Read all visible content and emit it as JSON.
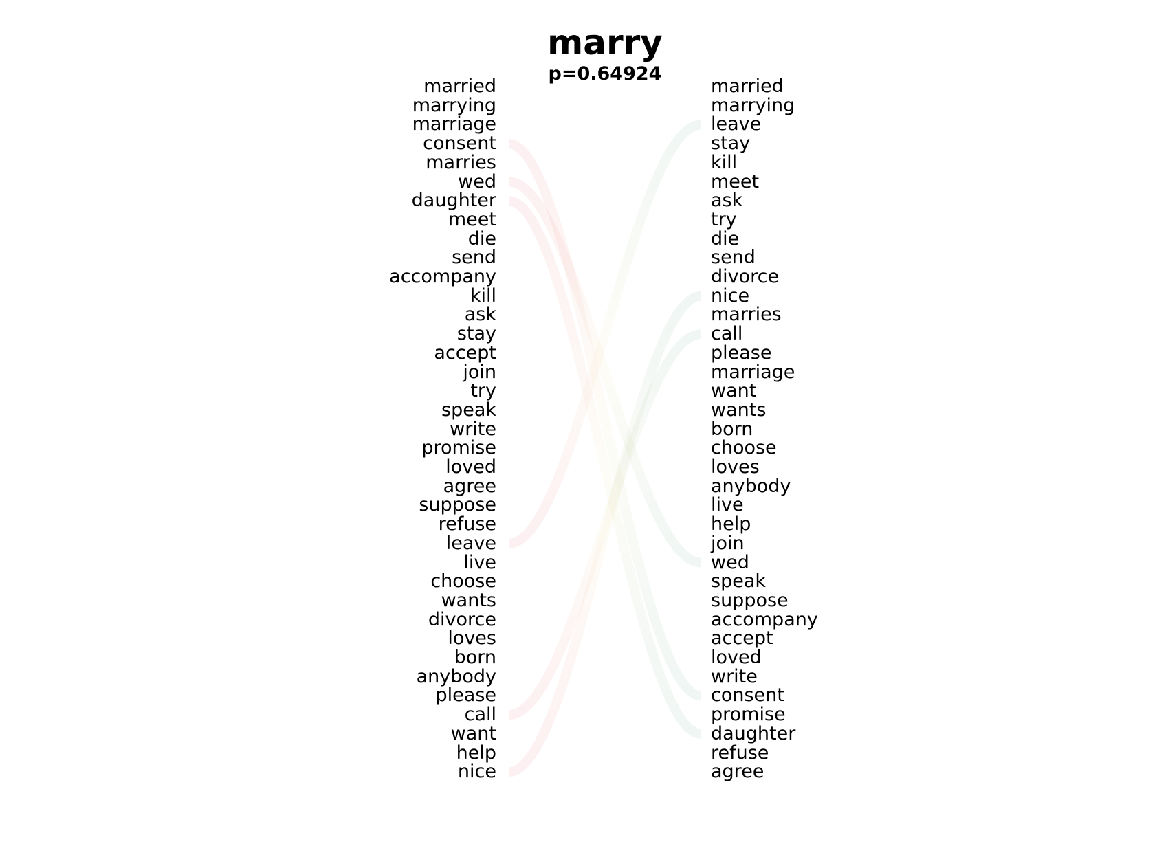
{
  "title": "marry",
  "subtitle": "p=0.64924",
  "left_words": [
    "married",
    "marrying",
    "marriage",
    "consent",
    "marries",
    "wed",
    "daughter",
    "meet",
    "die",
    "send",
    "accompany",
    "kill",
    "ask",
    "stay",
    "accept",
    "join",
    "try",
    "speak",
    "write",
    "promise",
    "loved",
    "agree",
    "suppose",
    "refuse",
    "leave",
    "live",
    "choose",
    "wants",
    "divorce",
    "loves",
    "born",
    "anybody",
    "please",
    "call",
    "want",
    "help",
    "nice"
  ],
  "right_words": [
    "married",
    "marrying",
    "leave",
    "stay",
    "kill",
    "meet",
    "ask",
    "try",
    "die",
    "send",
    "divorce",
    "nice",
    "marries",
    "call",
    "please",
    "marriage",
    "want",
    "wants",
    "born",
    "choose",
    "loves",
    "anybody",
    "live",
    "help",
    "join",
    "wed",
    "speak",
    "suppose",
    "accompany",
    "accept",
    "loved",
    "write",
    "consent",
    "promise",
    "daughter",
    "refuse",
    "agree"
  ],
  "links": [
    {
      "from": "consent",
      "to": "consent"
    },
    {
      "from": "wed",
      "to": "wed"
    },
    {
      "from": "daughter",
      "to": "daughter"
    },
    {
      "from": "leave",
      "to": "leave"
    },
    {
      "from": "call",
      "to": "call"
    },
    {
      "from": "nice",
      "to": "nice"
    }
  ],
  "colors": {
    "left_link": "#d6001c",
    "right_link": "#006d3c"
  }
}
